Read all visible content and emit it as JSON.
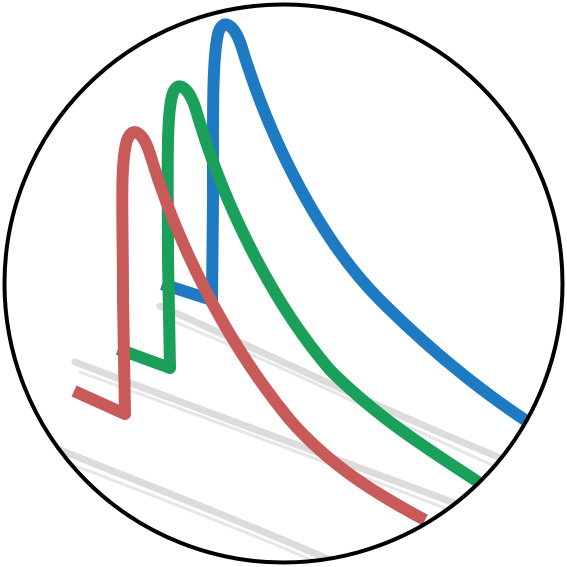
{
  "icon": {
    "name": "stacked-peaks-logo",
    "colors": {
      "background": "#ffffff",
      "outline": "#000000",
      "baseline": "#dcdcdc",
      "trace_front": "#c85a5a",
      "trace_middle": "#1aa05a",
      "trace_back": "#1f7ac4"
    }
  }
}
